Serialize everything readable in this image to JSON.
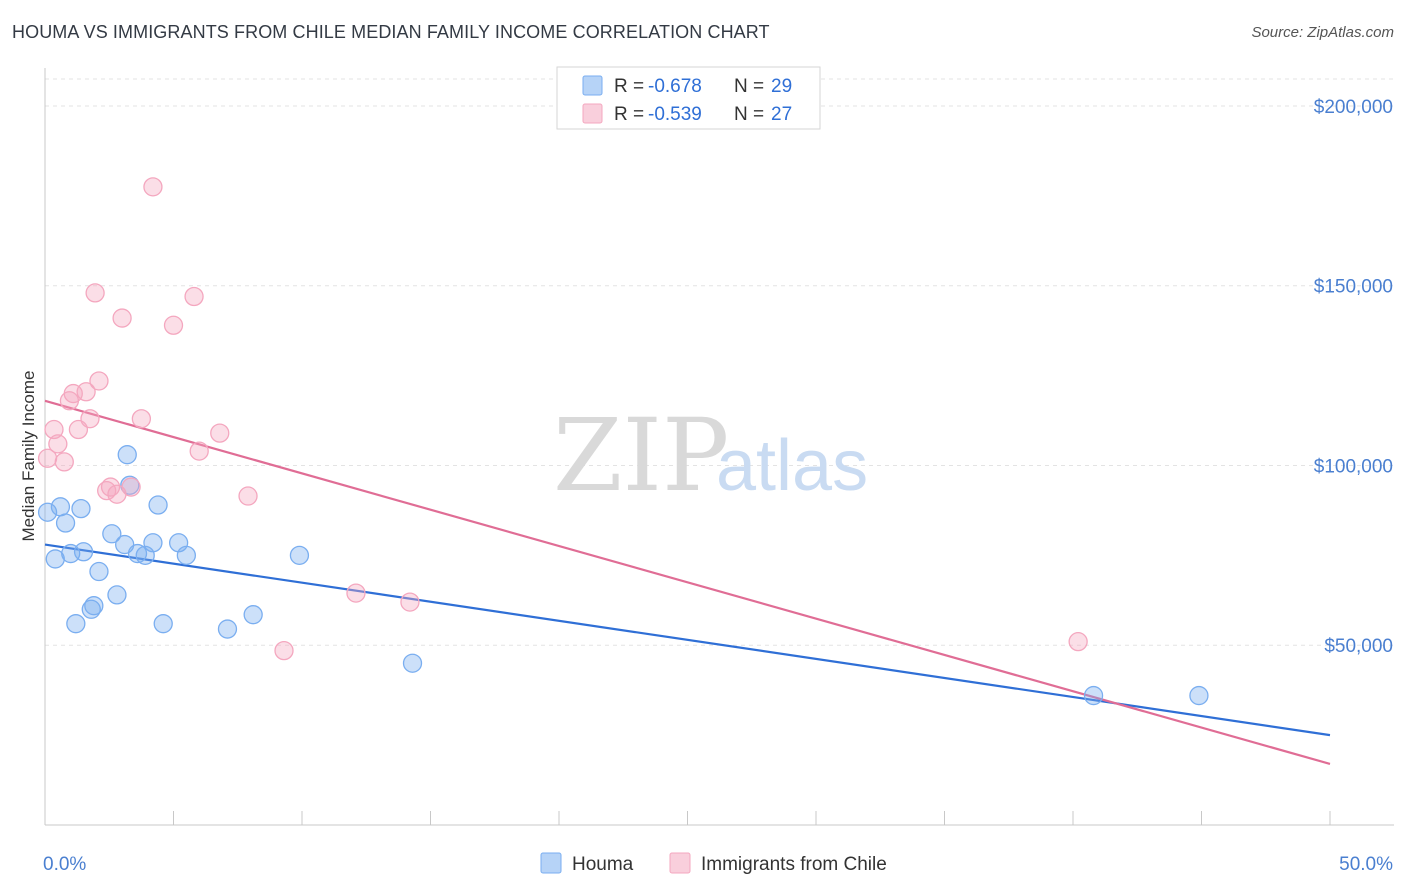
{
  "header": {
    "title": "HOUMA VS IMMIGRANTS FROM CHILE MEDIAN FAMILY INCOME CORRELATION CHART",
    "source": "Source: ZipAtlas.com"
  },
  "watermark": {
    "zip": "ZIP",
    "atlas": "atlas"
  },
  "chart_data": {
    "type": "scatter",
    "title": "HOUMA VS IMMIGRANTS FROM CHILE MEDIAN FAMILY INCOME CORRELATION CHART",
    "xlabel": "",
    "ylabel": "Median Family Income",
    "xlim": [
      0,
      50
    ],
    "ylim": [
      0,
      210000
    ],
    "x_tick_labels": [
      "0.0%",
      "50.0%"
    ],
    "y_ticks": [
      50000,
      100000,
      150000,
      200000
    ],
    "y_tick_labels": [
      "$50,000",
      "$100,000",
      "$150,000",
      "$200,000"
    ],
    "grid": true,
    "legend_position": "top-center",
    "series": [
      {
        "name": "Houma",
        "color": "#7aaef0",
        "line_color": "#2f6fd6",
        "r_label": "R =",
        "r_value": "-0.678",
        "n_label": "N =",
        "n_value": "29",
        "trend": {
          "x": [
            0,
            50
          ],
          "y": [
            78000,
            25000
          ]
        },
        "points": [
          {
            "x": 0.1,
            "y": 87000
          },
          {
            "x": 0.4,
            "y": 74000
          },
          {
            "x": 0.6,
            "y": 88500
          },
          {
            "x": 0.8,
            "y": 84000
          },
          {
            "x": 1.0,
            "y": 75500
          },
          {
            "x": 1.2,
            "y": 56000
          },
          {
            "x": 1.4,
            "y": 88000
          },
          {
            "x": 1.5,
            "y": 76000
          },
          {
            "x": 1.8,
            "y": 60000
          },
          {
            "x": 1.9,
            "y": 61000
          },
          {
            "x": 2.1,
            "y": 70500
          },
          {
            "x": 2.6,
            "y": 81000
          },
          {
            "x": 2.8,
            "y": 64000
          },
          {
            "x": 3.1,
            "y": 78000
          },
          {
            "x": 3.2,
            "y": 103000
          },
          {
            "x": 3.3,
            "y": 94500
          },
          {
            "x": 3.6,
            "y": 75500
          },
          {
            "x": 3.9,
            "y": 75000
          },
          {
            "x": 4.2,
            "y": 78500
          },
          {
            "x": 4.4,
            "y": 89000
          },
          {
            "x": 4.6,
            "y": 56000
          },
          {
            "x": 5.2,
            "y": 78500
          },
          {
            "x": 5.5,
            "y": 75000
          },
          {
            "x": 7.1,
            "y": 54500
          },
          {
            "x": 8.1,
            "y": 58500
          },
          {
            "x": 9.9,
            "y": 75000
          },
          {
            "x": 14.3,
            "y": 45000
          },
          {
            "x": 40.8,
            "y": 36000
          },
          {
            "x": 44.9,
            "y": 36000
          }
        ]
      },
      {
        "name": "Immigrants from Chile",
        "color": "#f4a7bf",
        "line_color": "#e06d95",
        "r_label": "R =",
        "r_value": "-0.539",
        "n_label": "N =",
        "n_value": "27",
        "trend": {
          "x": [
            0,
            50
          ],
          "y": [
            118000,
            17000
          ]
        },
        "points": [
          {
            "x": 0.1,
            "y": 102000
          },
          {
            "x": 0.35,
            "y": 110000
          },
          {
            "x": 0.5,
            "y": 106000
          },
          {
            "x": 0.75,
            "y": 101000
          },
          {
            "x": 0.95,
            "y": 118000
          },
          {
            "x": 1.1,
            "y": 120000
          },
          {
            "x": 1.3,
            "y": 110000
          },
          {
            "x": 1.6,
            "y": 120500
          },
          {
            "x": 1.75,
            "y": 113000
          },
          {
            "x": 1.95,
            "y": 148000
          },
          {
            "x": 2.1,
            "y": 123500
          },
          {
            "x": 2.4,
            "y": 93000
          },
          {
            "x": 2.55,
            "y": 94000
          },
          {
            "x": 2.8,
            "y": 92000
          },
          {
            "x": 3.0,
            "y": 141000
          },
          {
            "x": 3.35,
            "y": 94000
          },
          {
            "x": 3.75,
            "y": 113000
          },
          {
            "x": 4.2,
            "y": 177500
          },
          {
            "x": 5.0,
            "y": 139000
          },
          {
            "x": 5.8,
            "y": 147000
          },
          {
            "x": 6.0,
            "y": 104000
          },
          {
            "x": 6.8,
            "y": 109000
          },
          {
            "x": 7.9,
            "y": 91500
          },
          {
            "x": 9.3,
            "y": 48500
          },
          {
            "x": 12.1,
            "y": 64500
          },
          {
            "x": 14.2,
            "y": 62000
          },
          {
            "x": 40.2,
            "y": 51000
          }
        ]
      }
    ]
  }
}
